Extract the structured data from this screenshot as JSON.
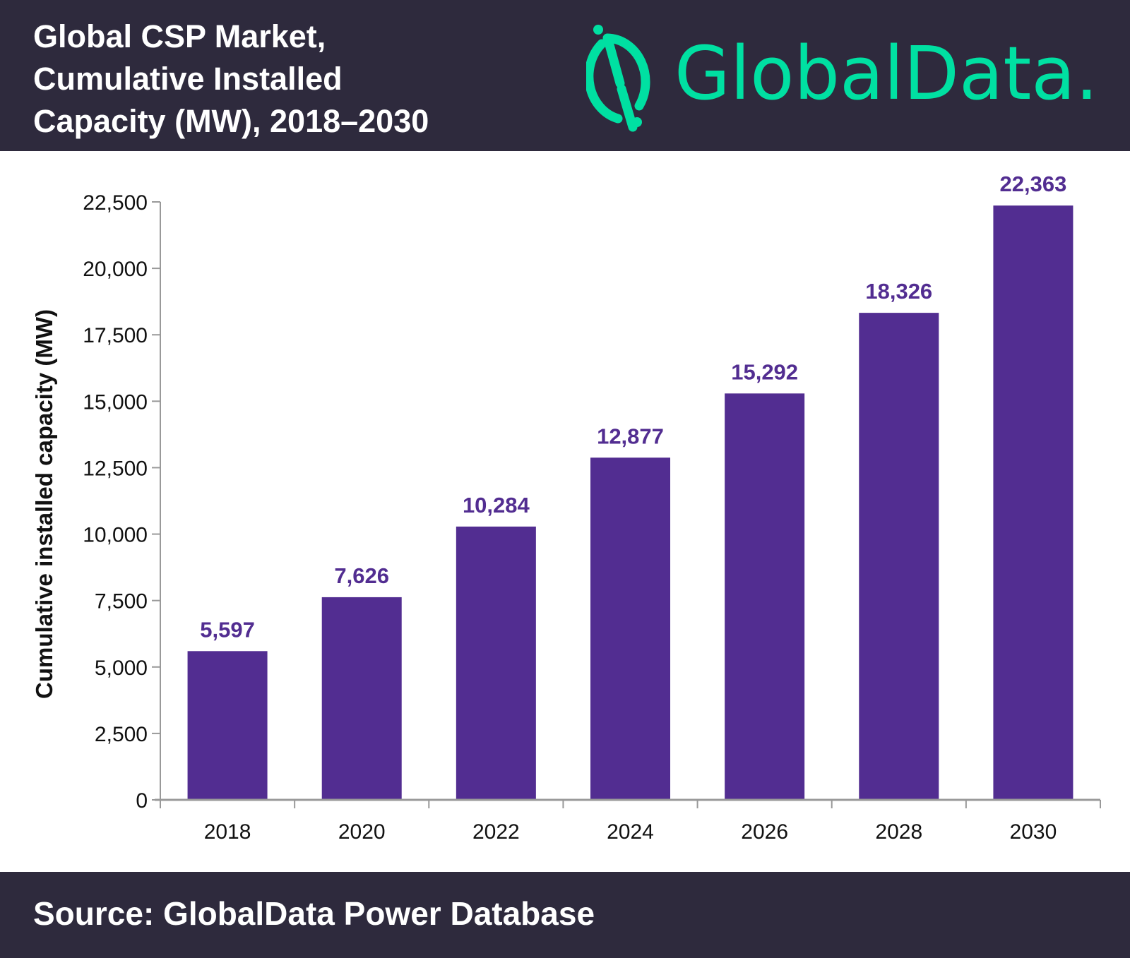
{
  "header": {
    "title_lines": [
      "Global CSP Market,",
      "Cumulative Installed",
      "Capacity (MW), 2018–2030"
    ],
    "logo_text": "GlobalData."
  },
  "footer": {
    "source": "Source: GlobalData Power Database"
  },
  "colors": {
    "header_bg": "#2e2a3d",
    "bar": "#522d91",
    "logo": "#00e0a2"
  },
  "chart_data": {
    "type": "bar",
    "title": "Global CSP Market, Cumulative Installed Capacity (MW), 2018–2030",
    "categories": [
      "2018",
      "2020",
      "2022",
      "2024",
      "2026",
      "2028",
      "2030"
    ],
    "values": [
      5597,
      7626,
      10284,
      12877,
      15292,
      18326,
      22363
    ],
    "data_labels": [
      "5,597",
      "7,626",
      "10,284",
      "12,877",
      "15,292",
      "18,326",
      "22,363"
    ],
    "xlabel": "",
    "ylabel": "Cumulative installed capacity (MW)",
    "ylim": [
      0,
      22500
    ],
    "yticks": [
      0,
      2500,
      5000,
      7500,
      10000,
      12500,
      15000,
      17500,
      20000,
      22500
    ],
    "ytick_labels": [
      "0",
      "2,500",
      "5,000",
      "7,500",
      "10,000",
      "12,500",
      "15,000",
      "17,500",
      "20,000",
      "22,500"
    ],
    "grid": false,
    "legend": "none"
  }
}
